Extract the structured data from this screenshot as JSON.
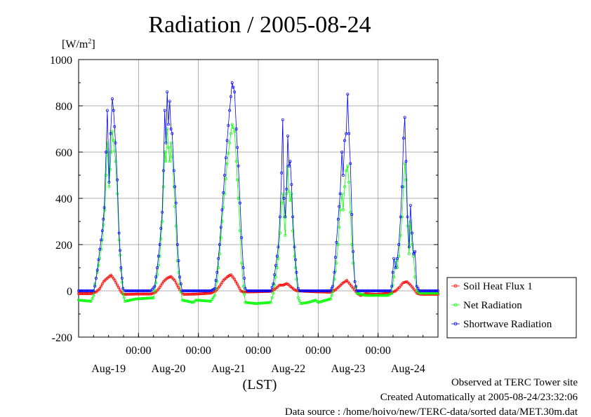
{
  "chart_data": {
    "type": "line",
    "title": "Radiation / 2005-08-24",
    "ylabel_unit": "[W/m",
    "ylabel_sup": "2",
    "ylabel_close": "]",
    "ylim": [
      -200,
      1000
    ],
    "y_ticks": [
      -200,
      0,
      200,
      400,
      600,
      800,
      1000
    ],
    "x_range_hours": [
      0,
      144
    ],
    "x_ticks": [
      {
        "label": "00:00",
        "date": "Aug-19",
        "hour": 24
      },
      {
        "label": "00:00",
        "date": "Aug-20",
        "hour": 48
      },
      {
        "label": "00:00",
        "date": "Aug-21",
        "hour": 72
      },
      {
        "label": "00:00",
        "date": "Aug-22",
        "hour": 96
      },
      {
        "label": "00:00",
        "date": "Aug-23",
        "hour": 120
      }
    ],
    "date_labels": [
      "Aug-19",
      "Aug-20",
      "Aug-21",
      "Aug-22",
      "Aug-23",
      "Aug-24"
    ],
    "xlabel": "(LST)",
    "grid": true,
    "legend_position": "right",
    "series": [
      {
        "name": "Soil Heat Flux 1",
        "color": "#ff0000",
        "points": [
          [
            0,
            -12
          ],
          [
            5,
            -12
          ],
          [
            7,
            -5
          ],
          [
            8.5,
            10
          ],
          [
            10,
            40
          ],
          [
            11.5,
            55
          ],
          [
            13,
            68
          ],
          [
            14.5,
            45
          ],
          [
            16,
            15
          ],
          [
            17,
            -5
          ],
          [
            18,
            -15
          ],
          [
            23,
            -14
          ],
          [
            29,
            -14
          ],
          [
            31,
            -5
          ],
          [
            32.5,
            15
          ],
          [
            34,
            40
          ],
          [
            35.5,
            55
          ],
          [
            37,
            62
          ],
          [
            38.5,
            45
          ],
          [
            40,
            15
          ],
          [
            41,
            -5
          ],
          [
            42,
            -15
          ],
          [
            47,
            -14
          ],
          [
            53,
            -10
          ],
          [
            55,
            0
          ],
          [
            56.5,
            20
          ],
          [
            58,
            45
          ],
          [
            59.5,
            60
          ],
          [
            61,
            70
          ],
          [
            62.5,
            50
          ],
          [
            64,
            20
          ],
          [
            65,
            0
          ],
          [
            66,
            -5
          ],
          [
            71,
            -4
          ],
          [
            77,
            -2
          ],
          [
            79,
            10
          ],
          [
            80.5,
            25
          ],
          [
            82,
            25
          ],
          [
            83.5,
            32
          ],
          [
            85,
            18
          ],
          [
            86.5,
            5
          ],
          [
            87.5,
            0
          ],
          [
            91,
            -2
          ],
          [
            95,
            -4
          ],
          [
            101,
            -6
          ],
          [
            103,
            5
          ],
          [
            104.5,
            20
          ],
          [
            106,
            35
          ],
          [
            107.5,
            45
          ],
          [
            109,
            25
          ],
          [
            110.5,
            5
          ],
          [
            111.5,
            -10
          ],
          [
            113,
            -20
          ],
          [
            115,
            -12
          ],
          [
            119,
            -15
          ],
          [
            125,
            -10
          ],
          [
            127,
            0
          ],
          [
            128.5,
            15
          ],
          [
            130,
            35
          ],
          [
            131.5,
            40
          ],
          [
            133,
            25
          ],
          [
            134.5,
            5
          ],
          [
            135.5,
            -10
          ],
          [
            137,
            -15
          ],
          [
            144,
            -15
          ]
        ]
      },
      {
        "name": "Net Radiation",
        "color": "#00ff00",
        "points": [
          [
            0,
            -40
          ],
          [
            5,
            -45
          ],
          [
            6,
            -20
          ],
          [
            6.5,
            30
          ],
          [
            7.5,
            80
          ],
          [
            8.5,
            140
          ],
          [
            9.5,
            220
          ],
          [
            10.5,
            350
          ],
          [
            11,
            500
          ],
          [
            11.5,
            640
          ],
          [
            12.2,
            450
          ],
          [
            13,
            600
          ],
          [
            13.5,
            690
          ],
          [
            14,
            650
          ],
          [
            14.8,
            560
          ],
          [
            15.5,
            420
          ],
          [
            16.2,
            220
          ],
          [
            17,
            90
          ],
          [
            17.8,
            -15
          ],
          [
            18.6,
            -45
          ],
          [
            23,
            -35
          ],
          [
            30,
            -30
          ],
          [
            30.5,
            0
          ],
          [
            31.5,
            70
          ],
          [
            32.5,
            150
          ],
          [
            33.5,
            300
          ],
          [
            34,
            450
          ],
          [
            34.5,
            600
          ],
          [
            35,
            560
          ],
          [
            35.5,
            700
          ],
          [
            36,
            620
          ],
          [
            36.5,
            560
          ],
          [
            37,
            640
          ],
          [
            37.5,
            580
          ],
          [
            38.2,
            450
          ],
          [
            39,
            280
          ],
          [
            39.6,
            130
          ],
          [
            40.5,
            30
          ],
          [
            41.5,
            -40
          ],
          [
            46,
            -50
          ],
          [
            47,
            -40
          ],
          [
            53,
            -45
          ],
          [
            54.5,
            -20
          ],
          [
            55.5,
            40
          ],
          [
            56.5,
            160
          ],
          [
            57.5,
            300
          ],
          [
            58.5,
            420
          ],
          [
            59.5,
            550
          ],
          [
            60.5,
            640
          ],
          [
            61.5,
            720
          ],
          [
            62.5,
            690
          ],
          [
            63.2,
            560
          ],
          [
            64,
            400
          ],
          [
            64.7,
            260
          ],
          [
            65.3,
            120
          ],
          [
            66,
            20
          ],
          [
            66.8,
            -50
          ],
          [
            71,
            -55
          ],
          [
            77,
            -50
          ],
          [
            78,
            -10
          ],
          [
            79,
            60
          ],
          [
            80,
            140
          ],
          [
            80.7,
            250
          ],
          [
            81.3,
            380
          ],
          [
            81.8,
            420
          ],
          [
            82.3,
            320
          ],
          [
            82.8,
            240
          ],
          [
            83.3,
            420
          ],
          [
            83.8,
            540
          ],
          [
            84.3,
            430
          ],
          [
            84.8,
            390
          ],
          [
            85.3,
            420
          ],
          [
            85.8,
            260
          ],
          [
            86.5,
            150
          ],
          [
            87.3,
            50
          ],
          [
            88,
            -30
          ],
          [
            89,
            -55
          ],
          [
            92,
            -50
          ],
          [
            95,
            -40
          ],
          [
            96,
            -50
          ],
          [
            101,
            -35
          ],
          [
            101.8,
            -5
          ],
          [
            102.5,
            50
          ],
          [
            103.3,
            120
          ],
          [
            104,
            200
          ],
          [
            104.8,
            350
          ],
          [
            105.5,
            420
          ],
          [
            106,
            350
          ],
          [
            106.6,
            450
          ],
          [
            107.2,
            520
          ],
          [
            107.8,
            540
          ],
          [
            108.3,
            470
          ],
          [
            108.9,
            340
          ],
          [
            109.5,
            200
          ],
          [
            110,
            120
          ],
          [
            110.7,
            40
          ],
          [
            111.5,
            -10
          ],
          [
            115,
            -20
          ],
          [
            119,
            -20
          ],
          [
            124,
            -20
          ],
          [
            125.5,
            -10
          ],
          [
            126.3,
            60
          ],
          [
            127,
            130
          ],
          [
            127.7,
            100
          ],
          [
            128.3,
            150
          ],
          [
            129,
            240
          ],
          [
            129.6,
            320
          ],
          [
            130.2,
            450
          ],
          [
            130.7,
            550
          ],
          [
            131.2,
            480
          ],
          [
            131.8,
            280
          ],
          [
            132.4,
            160
          ],
          [
            133,
            300
          ],
          [
            133.6,
            200
          ],
          [
            134.2,
            150
          ],
          [
            134.8,
            60
          ],
          [
            135.5,
            0
          ],
          [
            136.5,
            -10
          ],
          [
            144,
            -10
          ]
        ]
      },
      {
        "name": "Shortwave Radiation",
        "color": "#0000ff",
        "points": [
          [
            0,
            0
          ],
          [
            6,
            0
          ],
          [
            6.5,
            20
          ],
          [
            7.5,
            90
          ],
          [
            8.5,
            180
          ],
          [
            9.5,
            260
          ],
          [
            10.3,
            360
          ],
          [
            11,
            600
          ],
          [
            11.5,
            780
          ],
          [
            12.2,
            470
          ],
          [
            12.8,
            680
          ],
          [
            13.5,
            830
          ],
          [
            14,
            780
          ],
          [
            14.8,
            640
          ],
          [
            15.5,
            480
          ],
          [
            16.2,
            250
          ],
          [
            17,
            100
          ],
          [
            17.8,
            10
          ],
          [
            18.5,
            0
          ],
          [
            29,
            0
          ],
          [
            30.5,
            20
          ],
          [
            31.5,
            100
          ],
          [
            32.5,
            200
          ],
          [
            33.5,
            340
          ],
          [
            34,
            520
          ],
          [
            34.5,
            780
          ],
          [
            35,
            640
          ],
          [
            35.5,
            860
          ],
          [
            36,
            720
          ],
          [
            36.5,
            820
          ],
          [
            37,
            700
          ],
          [
            37.5,
            680
          ],
          [
            38.2,
            520
          ],
          [
            39,
            380
          ],
          [
            39.6,
            200
          ],
          [
            40.5,
            60
          ],
          [
            41.5,
            0
          ],
          [
            53,
            0
          ],
          [
            54.5,
            10
          ],
          [
            55.5,
            80
          ],
          [
            56.5,
            200
          ],
          [
            57.5,
            350
          ],
          [
            58.5,
            500
          ],
          [
            59.5,
            650
          ],
          [
            60.5,
            780
          ],
          [
            61.5,
            900
          ],
          [
            62.5,
            860
          ],
          [
            63.2,
            700
          ],
          [
            64,
            540
          ],
          [
            64.7,
            380
          ],
          [
            65.3,
            230
          ],
          [
            66,
            100
          ],
          [
            66.8,
            10
          ],
          [
            67.5,
            0
          ],
          [
            77,
            0
          ],
          [
            78,
            30
          ],
          [
            79,
            110
          ],
          [
            80,
            190
          ],
          [
            80.7,
            320
          ],
          [
            81.3,
            510
          ],
          [
            81.8,
            740
          ],
          [
            82.3,
            400
          ],
          [
            82.8,
            320
          ],
          [
            83.3,
            440
          ],
          [
            83.8,
            670
          ],
          [
            84.3,
            540
          ],
          [
            84.8,
            560
          ],
          [
            85.3,
            460
          ],
          [
            85.8,
            320
          ],
          [
            86.5,
            190
          ],
          [
            87.3,
            80
          ],
          [
            88,
            10
          ],
          [
            88.5,
            0
          ],
          [
            101,
            0
          ],
          [
            101.8,
            20
          ],
          [
            102.5,
            80
          ],
          [
            103.3,
            210
          ],
          [
            104,
            310
          ],
          [
            104.8,
            420
          ],
          [
            105.5,
            600
          ],
          [
            106,
            500
          ],
          [
            106.6,
            650
          ],
          [
            107.2,
            680
          ],
          [
            107.8,
            850
          ],
          [
            108.3,
            680
          ],
          [
            108.9,
            550
          ],
          [
            109.5,
            330
          ],
          [
            110,
            170
          ],
          [
            110.7,
            40
          ],
          [
            111.5,
            0
          ],
          [
            125,
            0
          ],
          [
            125.5,
            20
          ],
          [
            126.3,
            140
          ],
          [
            127,
            100
          ],
          [
            127.7,
            140
          ],
          [
            128.3,
            200
          ],
          [
            129,
            320
          ],
          [
            129.6,
            450
          ],
          [
            130.2,
            660
          ],
          [
            130.7,
            750
          ],
          [
            131.2,
            560
          ],
          [
            131.8,
            320
          ],
          [
            132.4,
            190
          ],
          [
            133,
            370
          ],
          [
            133.6,
            250
          ],
          [
            134.2,
            160
          ],
          [
            134.8,
            170
          ],
          [
            135.5,
            20
          ],
          [
            136.5,
            0
          ],
          [
            144,
            0
          ]
        ]
      }
    ]
  },
  "footer": {
    "line1": "Observed at TERC Tower site",
    "line2": "Created Automatically at 2005-08-24/23:32:06",
    "line3": "Data source : /home/hoivo/new/TERC-data/sorted  data/MET.30m.dat"
  }
}
